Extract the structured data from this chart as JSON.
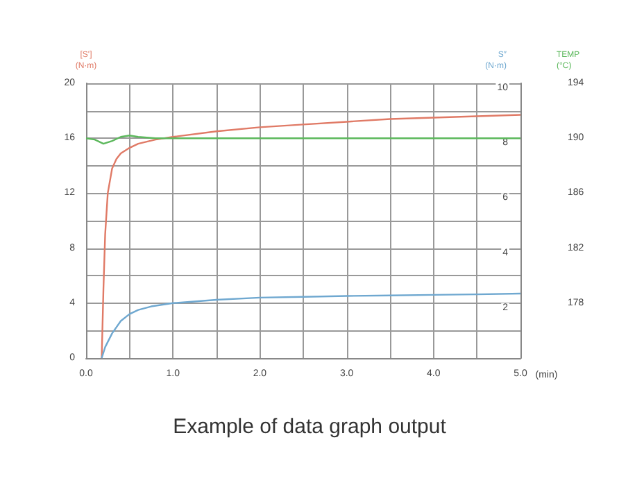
{
  "chart_data": {
    "type": "line",
    "xlabel": "(min)",
    "ylabel": "[S']\n(N·m)",
    "y2label": "S″\n(N·m)",
    "y3label": "TEMP\n(°C)",
    "annotations": [
      "Example of data graph output"
    ],
    "xlim": [
      0,
      5
    ],
    "xticks": [
      {
        "value": 0,
        "label": "0.0"
      },
      {
        "value": 0.5,
        "label": null
      },
      {
        "value": 1,
        "label": "1.0"
      },
      {
        "value": 1.5,
        "label": null
      },
      {
        "value": 2,
        "label": "2.0"
      },
      {
        "value": 2.5,
        "label": null
      },
      {
        "value": 3,
        "label": "3.0"
      },
      {
        "value": 3.5,
        "label": null
      },
      {
        "value": 4,
        "label": "4.0"
      },
      {
        "value": 4.5,
        "label": null
      },
      {
        "value": 5,
        "label": "5.0"
      }
    ],
    "ylim": [
      0,
      20
    ],
    "yticks": [
      0,
      {
        "value": 2,
        "label": null
      },
      4,
      {
        "value": 6,
        "label": null
      },
      8,
      {
        "value": 10,
        "label": null
      },
      12,
      {
        "value": 14,
        "label": null
      },
      16,
      {
        "value": 18,
        "label": null
      },
      20
    ],
    "y2lim": [
      0,
      10
    ],
    "y2ticks": [
      2,
      4,
      6,
      8,
      10
    ],
    "y3lim": [
      174,
      194
    ],
    "y3ticks": [
      178,
      182,
      186,
      190,
      194
    ],
    "grid": true,
    "marker": "none",
    "line_style": "solid",
    "series": [
      {
        "color": "#e07a66",
        "x": [
          0.18,
          0.2,
          0.22,
          0.25,
          0.3,
          0.35,
          0.4,
          0.5,
          0.6,
          0.8,
          1.0,
          1.5,
          2.0,
          2.5,
          3.0,
          3.5,
          4.0,
          4.5,
          5.0
        ],
        "values": [
          0,
          5,
          9,
          12,
          13.8,
          14.5,
          14.9,
          15.3,
          15.6,
          15.9,
          16.1,
          16.5,
          16.8,
          17.0,
          17.2,
          17.4,
          17.5,
          17.6,
          17.7
        ]
      },
      {
        "color": "#6fa8d0",
        "axis": "y2",
        "x": [
          0.18,
          0.22,
          0.3,
          0.4,
          0.5,
          0.6,
          0.75,
          1.0,
          1.5,
          2.0,
          2.5,
          3.0,
          3.5,
          4.0,
          4.5,
          5.0
        ],
        "values": [
          0,
          0.4,
          0.9,
          1.35,
          1.6,
          1.75,
          1.88,
          2.0,
          2.12,
          2.2,
          2.23,
          2.26,
          2.28,
          2.3,
          2.32,
          2.35
        ]
      },
      {
        "color": "#5cb85c",
        "axis": "y3",
        "x": [
          0,
          0.1,
          0.2,
          0.3,
          0.4,
          0.5,
          0.6,
          0.8,
          1.0,
          1.5,
          2.0,
          3.0,
          4.0,
          5.0
        ],
        "values": [
          190,
          189.9,
          189.6,
          189.8,
          190.1,
          190.2,
          190.1,
          190,
          190,
          190,
          190,
          190,
          190,
          190
        ]
      }
    ]
  }
}
